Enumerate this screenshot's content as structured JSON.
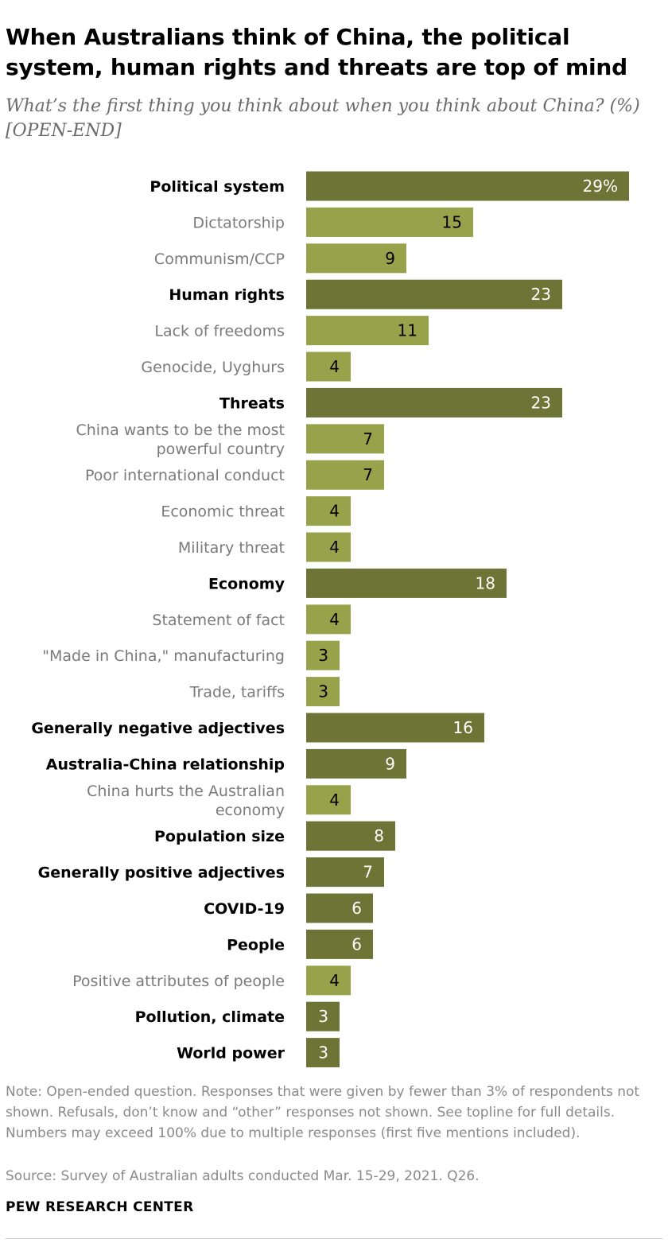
{
  "title": "When Australians think of China, the political system, human rights and threats are top of mind",
  "subtitle": "What’s the first thing you think about when you think about China? (%) [OPEN-END]",
  "note": "Note: Open-ended question. Responses that were given by fewer than 3% of respondents not shown. Refusals, don’t know and “other” responses not shown. See topline for full details. Numbers may exceed 100% due to multiple responses (first five mentions included).",
  "source": "Source: Survey of Australian adults conducted Mar. 15-29, 2021. Q26.",
  "brand": "PEW RESEARCH CENTER",
  "colors": {
    "main": "#6d7435",
    "sub": "#98a24a"
  },
  "chart_data": {
    "type": "bar",
    "orientation": "horizontal",
    "first_value_suffix": "%",
    "categories": [
      {
        "label": "Political system",
        "value": 29,
        "level": "main"
      },
      {
        "label": "Dictatorship",
        "value": 15,
        "level": "sub"
      },
      {
        "label": "Communism/CCP",
        "value": 9,
        "level": "sub"
      },
      {
        "label": "Human rights",
        "value": 23,
        "level": "main"
      },
      {
        "label": "Lack of freedoms",
        "value": 11,
        "level": "sub"
      },
      {
        "label": "Genocide, Uyghurs",
        "value": 4,
        "level": "sub"
      },
      {
        "label": "Threats",
        "value": 23,
        "level": "main"
      },
      {
        "label": [
          "China wants to be the most",
          "powerful country"
        ],
        "value": 7,
        "level": "sub"
      },
      {
        "label": "Poor international conduct",
        "value": 7,
        "level": "sub"
      },
      {
        "label": "Economic threat",
        "value": 4,
        "level": "sub"
      },
      {
        "label": "Military threat",
        "value": 4,
        "level": "sub"
      },
      {
        "label": "Economy",
        "value": 18,
        "level": "main"
      },
      {
        "label": "Statement of fact",
        "value": 4,
        "level": "sub"
      },
      {
        "label": "\"Made in China,\" manufacturing",
        "value": 3,
        "level": "sub"
      },
      {
        "label": "Trade, tariffs",
        "value": 3,
        "level": "sub"
      },
      {
        "label": "Generally negative adjectives",
        "value": 16,
        "level": "main"
      },
      {
        "label": "Australia-China relationship",
        "value": 9,
        "level": "main"
      },
      {
        "label": [
          "China hurts the Australian",
          "economy"
        ],
        "value": 4,
        "level": "sub"
      },
      {
        "label": "Population size",
        "value": 8,
        "level": "main"
      },
      {
        "label": "Generally positive adjectives",
        "value": 7,
        "level": "main"
      },
      {
        "label": "COVID-19",
        "value": 6,
        "level": "main"
      },
      {
        "label": "People",
        "value": 6,
        "level": "main"
      },
      {
        "label": "Positive attributes of people",
        "value": 4,
        "level": "sub"
      },
      {
        "label": "Pollution, climate",
        "value": 3,
        "level": "main"
      },
      {
        "label": "World power",
        "value": 3,
        "level": "main"
      }
    ]
  }
}
